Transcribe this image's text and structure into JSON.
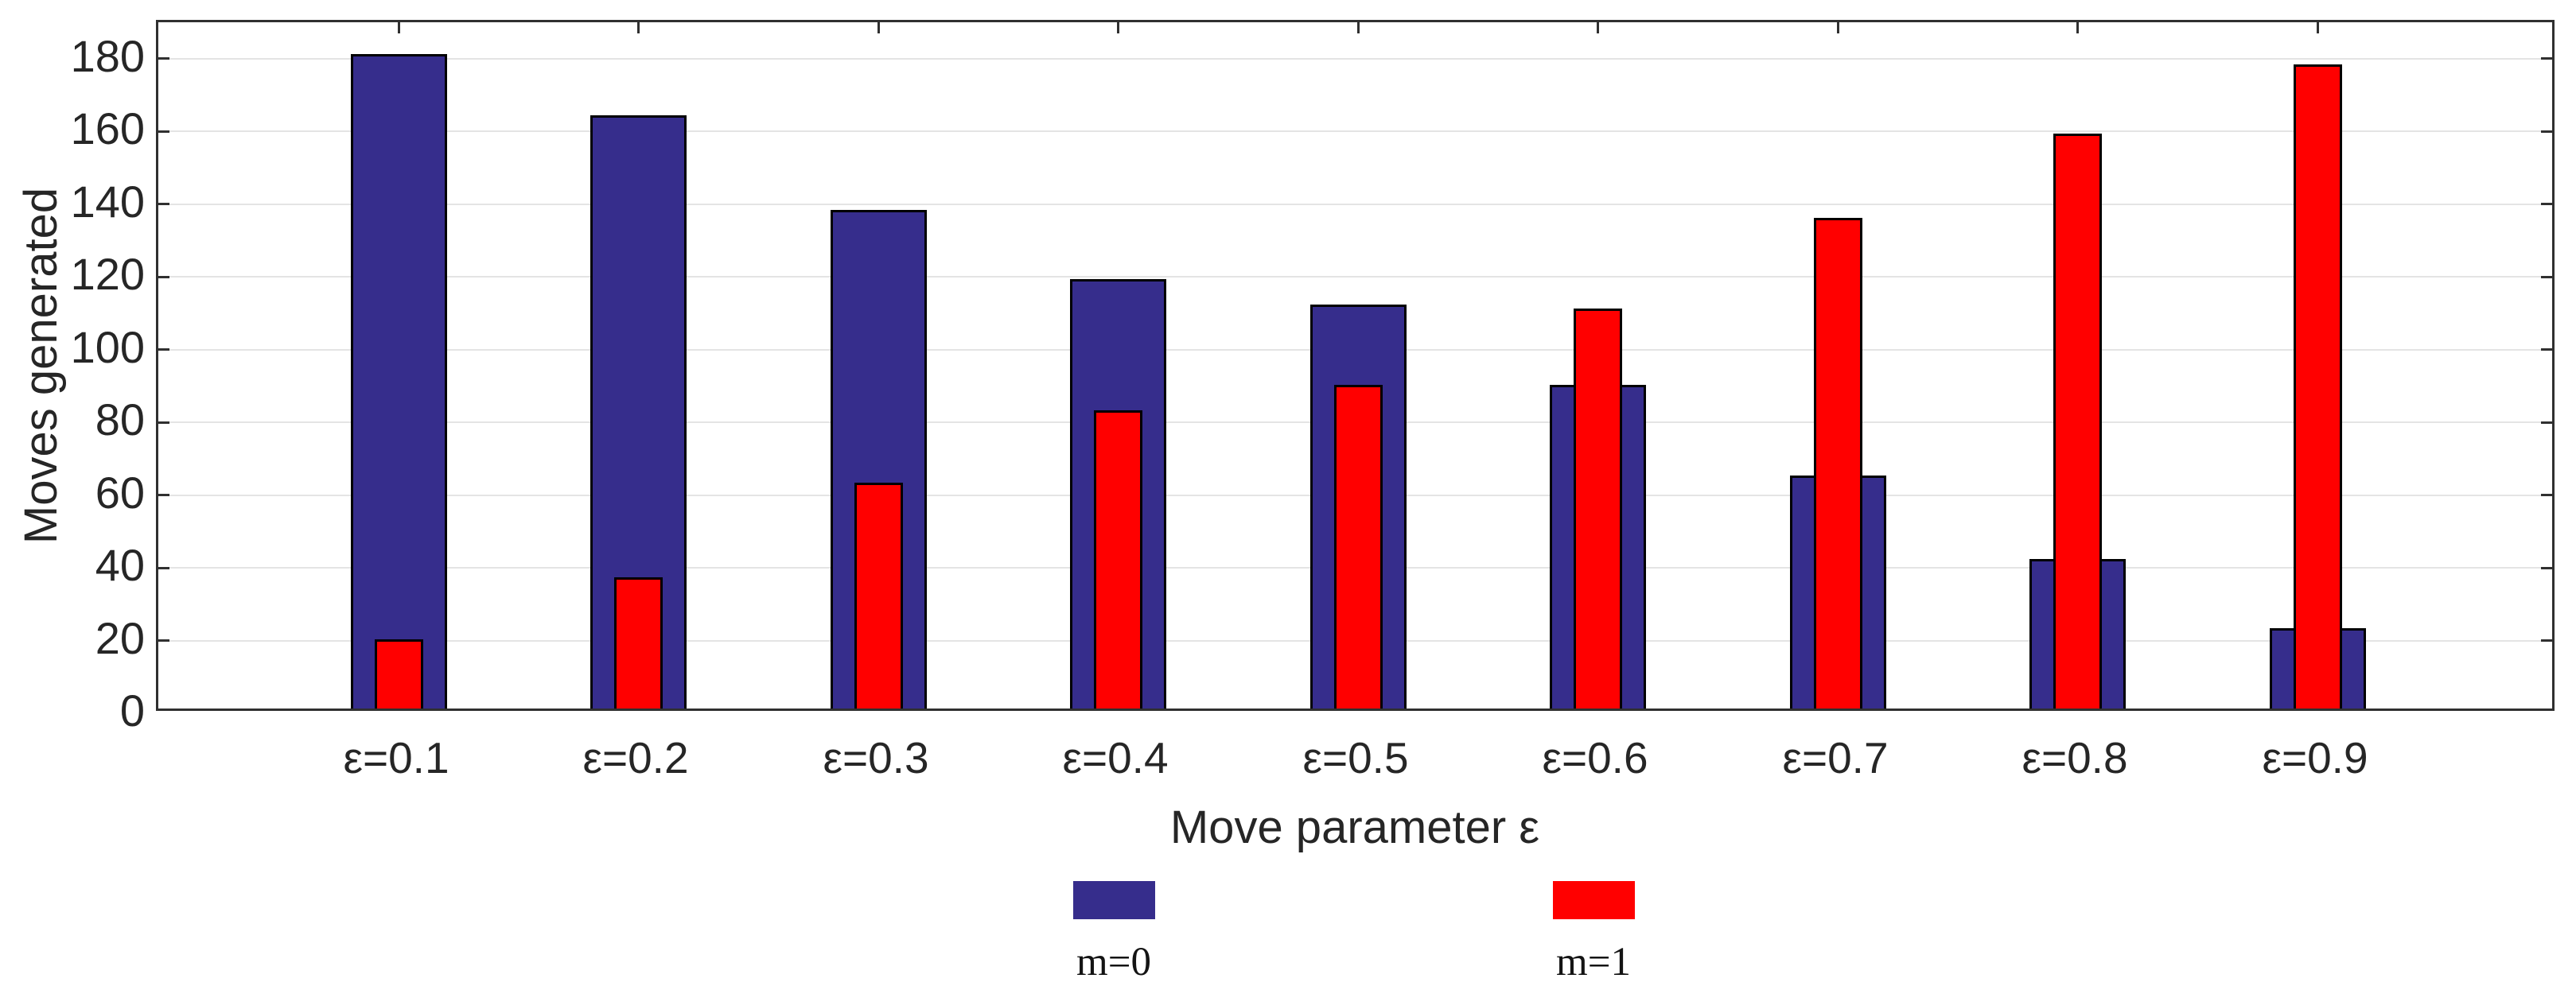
{
  "figure": {
    "background": "#ffffff"
  },
  "chart_data": {
    "type": "bar",
    "title": "",
    "ylabel": "Moves generated",
    "xlabel": "Move parameter ε",
    "categories": [
      "ε=0.1",
      "ε=0.2",
      "ε=0.3",
      "ε=0.4",
      "ε=0.5",
      "ε=0.6",
      "ε=0.7",
      "ε=0.8",
      "ε=0.9"
    ],
    "series": [
      {
        "name": "m=0",
        "color": "#362d8c",
        "values": [
          180,
          163,
          137,
          118,
          111,
          89,
          64,
          41,
          22
        ]
      },
      {
        "name": "m=1",
        "color": "#ff0000",
        "values": [
          19,
          36,
          62,
          82,
          89,
          110,
          135,
          158,
          177
        ]
      }
    ],
    "ylim": [
      0,
      190
    ],
    "yticks": [
      0,
      20,
      40,
      60,
      80,
      100,
      120,
      140,
      160,
      180
    ],
    "grid": true,
    "grid_color": "#e4e4e4",
    "axis_color": "#303030",
    "tick_label_color": "#262626",
    "bar_edge_color": "#000000",
    "legend_position": "below-center",
    "bar_layout": "overlaid-centered"
  }
}
